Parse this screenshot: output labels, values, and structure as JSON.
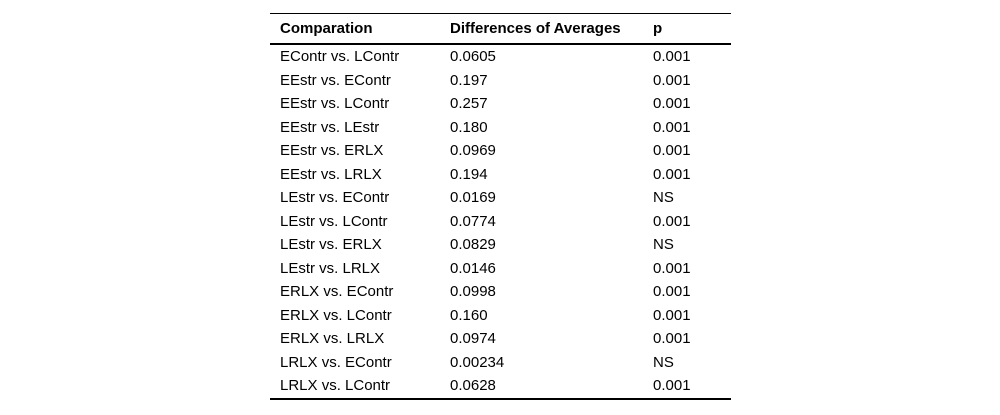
{
  "table": {
    "columns": [
      "Comparation",
      "Differences of Averages",
      "p"
    ],
    "rows": [
      {
        "comparison": "EContr vs. LContr",
        "difference": "0.0605",
        "p": "0.001"
      },
      {
        "comparison": "EEstr vs. EContr",
        "difference": "0.197",
        "p": "0.001"
      },
      {
        "comparison": "EEstr vs. LContr",
        "difference": "0.257",
        "p": "0.001"
      },
      {
        "comparison": "EEstr vs. LEstr",
        "difference": "0.180",
        "p": "0.001"
      },
      {
        "comparison": "EEstr vs. ERLX",
        "difference": "0.0969",
        "p": "0.001"
      },
      {
        "comparison": "EEstr vs. LRLX",
        "difference": "0.194",
        "p": "0.001"
      },
      {
        "comparison": "LEstr vs. EContr",
        "difference": "0.0169",
        "p": "NS"
      },
      {
        "comparison": "LEstr vs. LContr",
        "difference": "0.0774",
        "p": "0.001"
      },
      {
        "comparison": "LEstr vs. ERLX",
        "difference": "0.0829",
        "p": "NS"
      },
      {
        "comparison": "LEstr vs. LRLX",
        "difference": "0.0146",
        "p": "0.001"
      },
      {
        "comparison": "ERLX vs. EContr",
        "difference": "0.0998",
        "p": "0.001"
      },
      {
        "comparison": "ERLX vs. LContr",
        "difference": "0.160",
        "p": "0.001"
      },
      {
        "comparison": "ERLX vs. LRLX",
        "difference": "0.0974",
        "p": "0.001"
      },
      {
        "comparison": "LRLX vs. EContr",
        "difference": "0.00234",
        "p": "NS"
      },
      {
        "comparison": "LRLX vs. LContr",
        "difference": "0.0628",
        "p": "0.001"
      }
    ],
    "text_color": "#000000",
    "background_color": "#ffffff",
    "rule_color": "#000000"
  }
}
